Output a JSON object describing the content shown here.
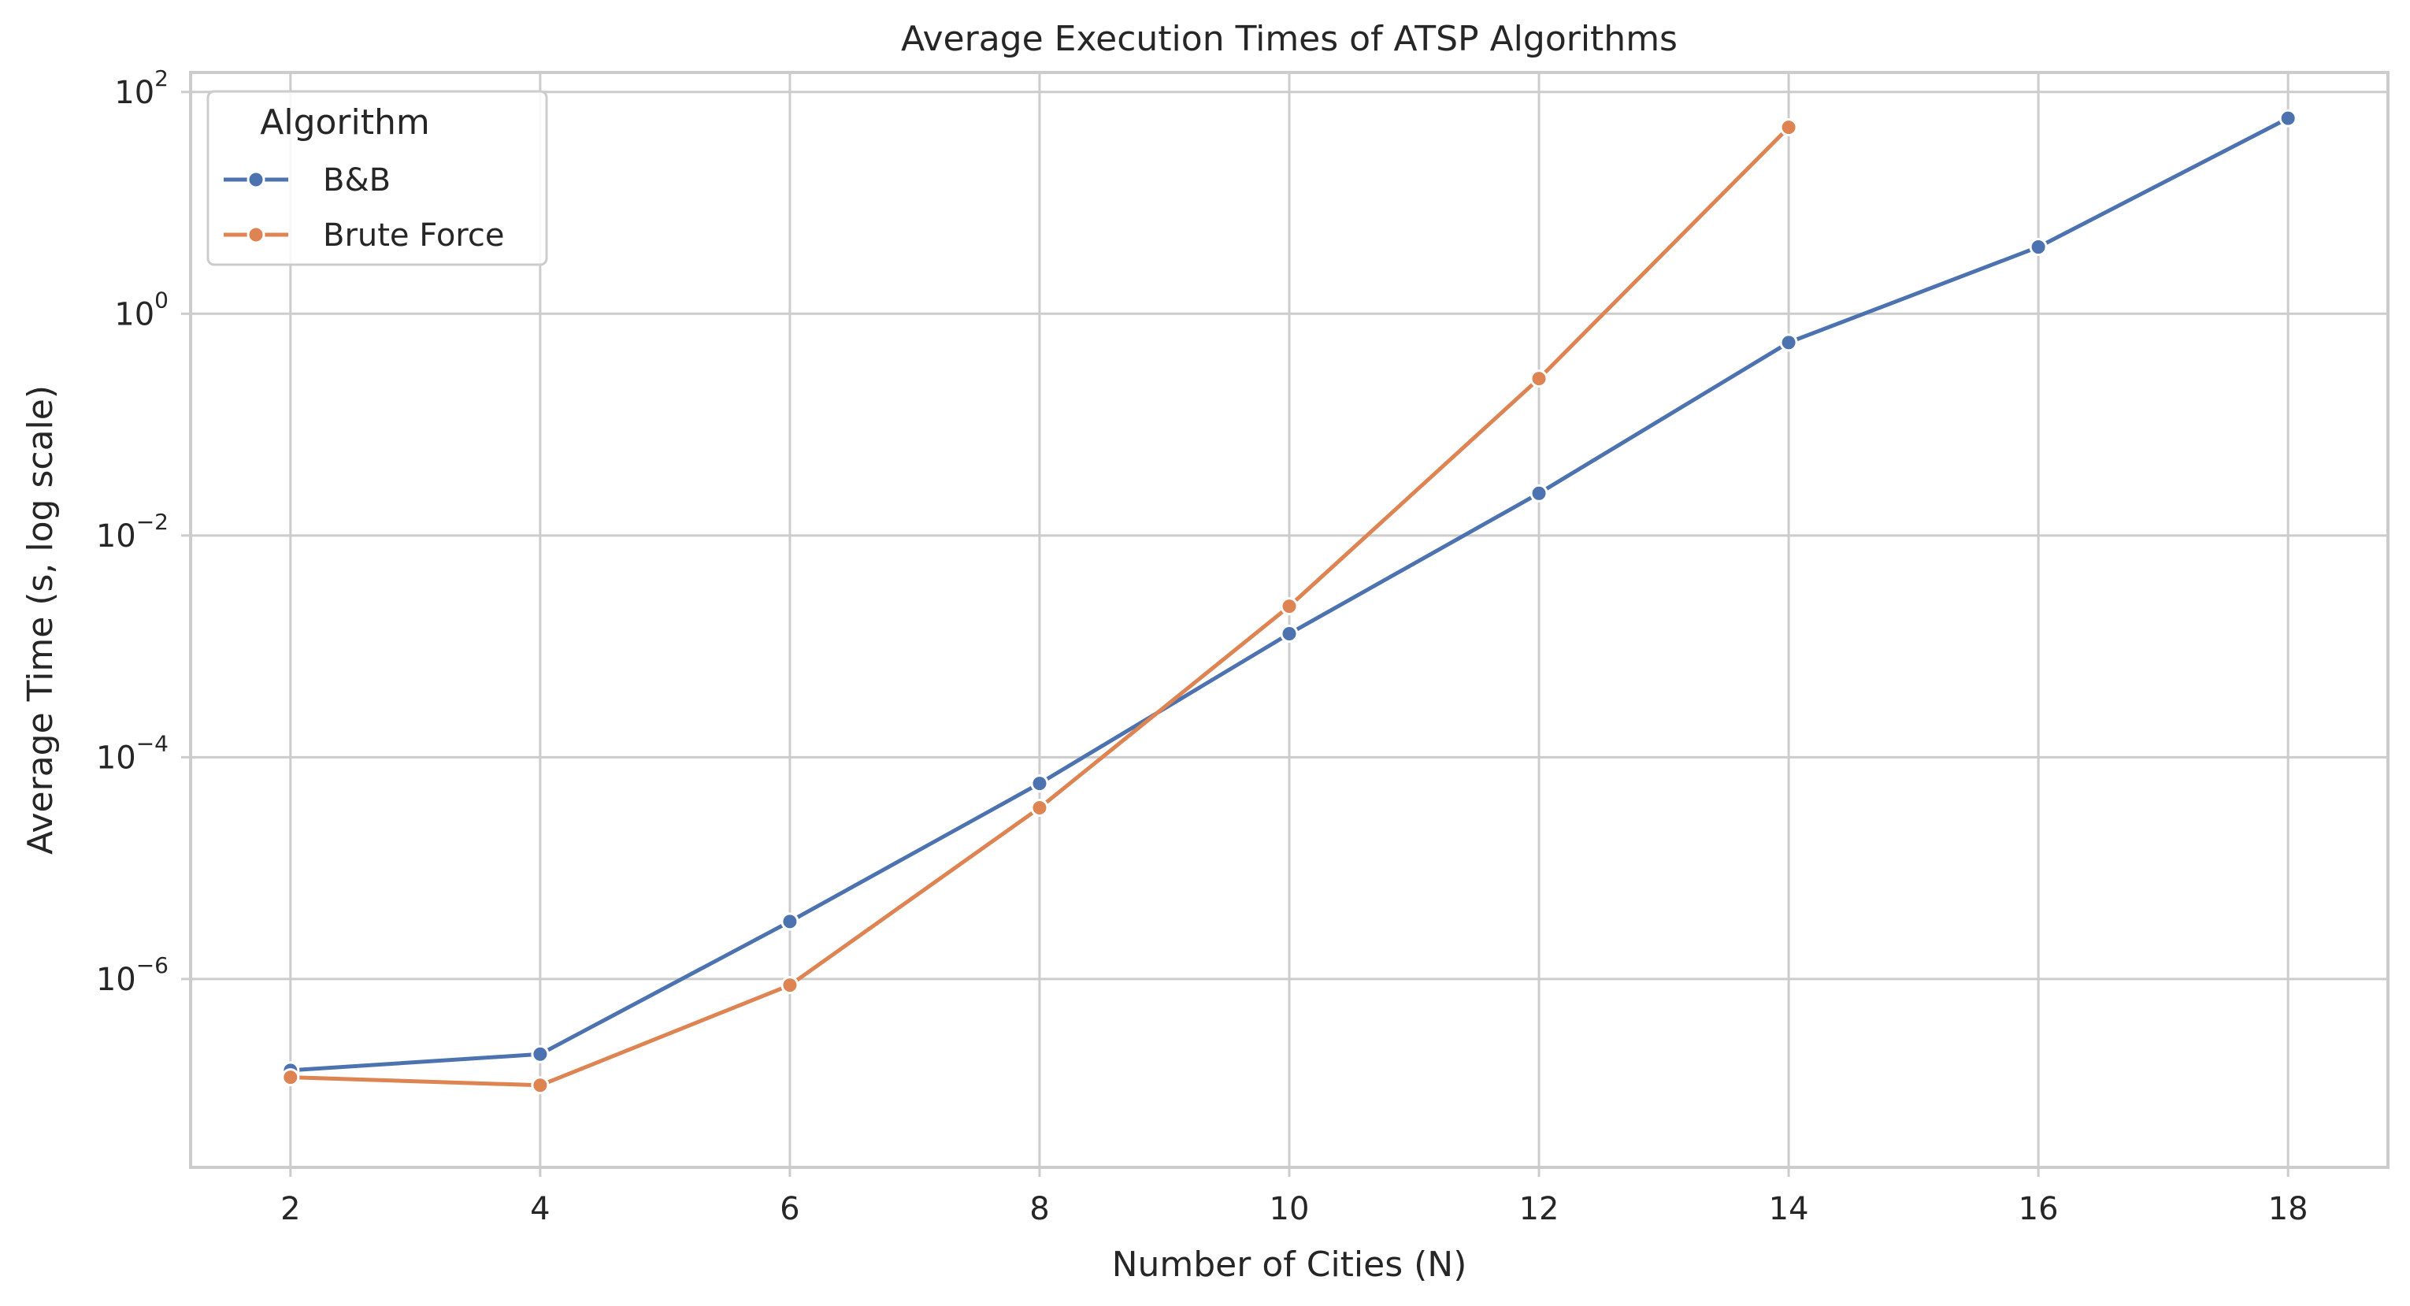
{
  "chart_data": {
    "type": "line",
    "title": "Average Execution Times of ATSP Algorithms",
    "xlabel": "Number of Cities (N)",
    "ylabel": "Average Time (s, log scale)",
    "y_scale": "log",
    "ylim": [
      2e-08,
      150
    ],
    "xlim": [
      1.2,
      18.8
    ],
    "x_ticks": [
      2,
      4,
      6,
      8,
      10,
      12,
      14,
      16,
      18
    ],
    "y_ticks": [
      {
        "value": 1e-06,
        "base": "10",
        "exp": "−6"
      },
      {
        "value": 0.0001,
        "base": "10",
        "exp": "−4"
      },
      {
        "value": 0.01,
        "base": "10",
        "exp": "−2"
      },
      {
        "value": 1,
        "base": "10",
        "exp": "0"
      },
      {
        "value": 100,
        "base": "10",
        "exp": "2"
      }
    ],
    "grid": true,
    "legend": {
      "title": "Algorithm",
      "placement": "top-left"
    },
    "series": [
      {
        "name": "B&B",
        "color": "#4c72b0",
        "x": [
          2,
          4,
          6,
          8,
          10,
          12,
          14,
          16,
          18
        ],
        "y": [
          1.5e-07,
          2.1e-07,
          3.3e-06,
          5.8e-05,
          0.0013,
          0.024,
          0.55,
          4.0,
          58
        ]
      },
      {
        "name": "Brute Force",
        "color": "#dd8452",
        "x": [
          2,
          4,
          6,
          8,
          10,
          12,
          14
        ],
        "y": [
          1.3e-07,
          1.1e-07,
          8.8e-07,
          3.5e-05,
          0.0023,
          0.26,
          48
        ]
      }
    ]
  }
}
